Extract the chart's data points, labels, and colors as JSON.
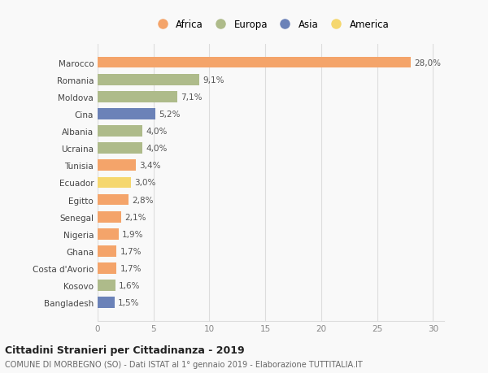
{
  "countries": [
    "Marocco",
    "Romania",
    "Moldova",
    "Cina",
    "Albania",
    "Ucraina",
    "Tunisia",
    "Ecuador",
    "Egitto",
    "Senegal",
    "Nigeria",
    "Ghana",
    "Costa d'Avorio",
    "Kosovo",
    "Bangladesh"
  ],
  "values": [
    28.0,
    9.1,
    7.1,
    5.2,
    4.0,
    4.0,
    3.4,
    3.0,
    2.8,
    2.1,
    1.9,
    1.7,
    1.7,
    1.6,
    1.5
  ],
  "labels": [
    "28,0%",
    "9,1%",
    "7,1%",
    "5,2%",
    "4,0%",
    "4,0%",
    "3,4%",
    "3,0%",
    "2,8%",
    "2,1%",
    "1,9%",
    "1,7%",
    "1,7%",
    "1,6%",
    "1,5%"
  ],
  "continents": [
    "Africa",
    "Europa",
    "Europa",
    "Asia",
    "Europa",
    "Europa",
    "Africa",
    "America",
    "Africa",
    "Africa",
    "Africa",
    "Africa",
    "Africa",
    "Europa",
    "Asia"
  ],
  "colors": {
    "Africa": "#F4A46A",
    "Europa": "#AEBB8A",
    "Asia": "#6B82B8",
    "America": "#F5D76E"
  },
  "legend_order": [
    "Africa",
    "Europa",
    "Asia",
    "America"
  ],
  "title1": "Cittadini Stranieri per Cittadinanza - 2019",
  "title2": "COMUNE DI MORBEGNO (SO) - Dati ISTAT al 1° gennaio 2019 - Elaborazione TUTTITALIA.IT",
  "xlim": [
    0,
    31
  ],
  "xticks": [
    0,
    5,
    10,
    15,
    20,
    25,
    30
  ],
  "background_color": "#f9f9f9",
  "bar_height": 0.65,
  "grid_color": "#dddddd"
}
